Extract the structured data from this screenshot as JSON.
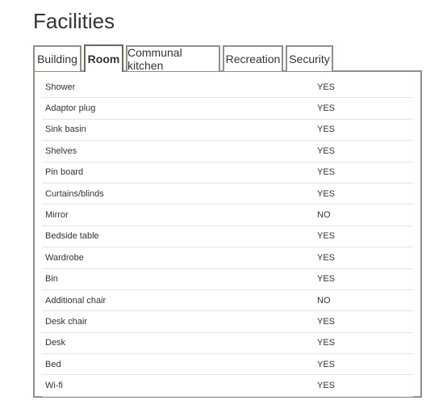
{
  "page": {
    "title": "Facilities"
  },
  "tabs": [
    {
      "label": "Building",
      "active": false
    },
    {
      "label": "Room",
      "active": true
    },
    {
      "label": "Communal kitchen",
      "active": false
    },
    {
      "label": "Recreation",
      "active": false
    },
    {
      "label": "Security",
      "active": false
    }
  ],
  "room_facilities": {
    "rows": [
      {
        "name": "Shower",
        "value": "YES"
      },
      {
        "name": "Adaptor plug",
        "value": "YES"
      },
      {
        "name": "Sink basin",
        "value": "YES"
      },
      {
        "name": "Shelves",
        "value": "YES"
      },
      {
        "name": "Pin board",
        "value": "YES"
      },
      {
        "name": "Curtains/blinds",
        "value": "YES"
      },
      {
        "name": "Mirror",
        "value": "NO"
      },
      {
        "name": "Bedside table",
        "value": "YES"
      },
      {
        "name": "Wardrobe",
        "value": "YES"
      },
      {
        "name": "Bin",
        "value": "YES"
      },
      {
        "name": "Additional chair",
        "value": "NO"
      },
      {
        "name": "Desk chair",
        "value": "YES"
      },
      {
        "name": "Desk",
        "value": "YES"
      },
      {
        "name": "Bed",
        "value": "YES"
      },
      {
        "name": "Wi-fi",
        "value": "YES"
      }
    ]
  },
  "colors": {
    "tab_border": "#958d85",
    "active_tab_border": "#6e6660",
    "row_divider": "#e3e3e3",
    "text": "#333333"
  }
}
